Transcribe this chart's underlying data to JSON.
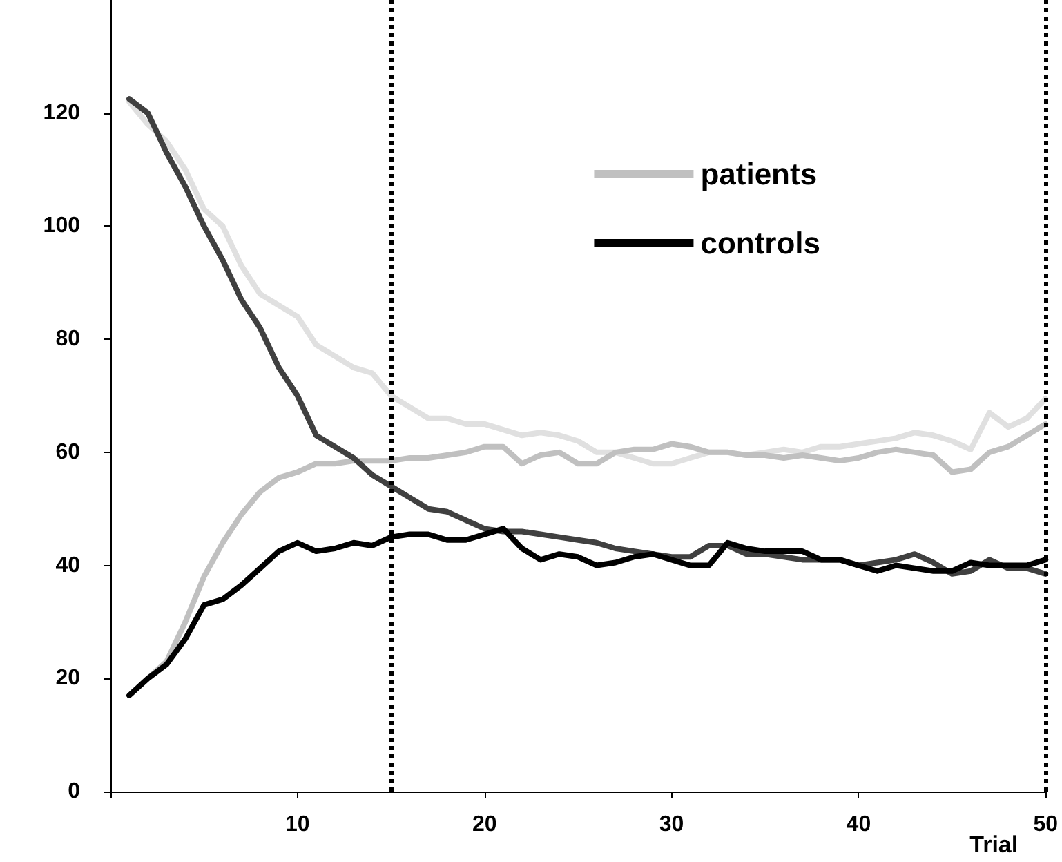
{
  "chart_data": {
    "type": "line",
    "xlabel": "Trial",
    "x": [
      1,
      2,
      3,
      4,
      5,
      6,
      7,
      8,
      9,
      10,
      11,
      12,
      13,
      14,
      15,
      16,
      17,
      18,
      19,
      20,
      21,
      22,
      23,
      24,
      25,
      26,
      27,
      28,
      29,
      30,
      31,
      32,
      33,
      34,
      35,
      36,
      37,
      38,
      39,
      40,
      41,
      42,
      43,
      44,
      45,
      46,
      47,
      48,
      49,
      50
    ],
    "series": [
      {
        "color": "#e0e0e0",
        "values": [
          122,
          118,
          115,
          110,
          103,
          100,
          93,
          88,
          86,
          84,
          79,
          77,
          75,
          74,
          70,
          68,
          66,
          66,
          65,
          65,
          64,
          63,
          63.5,
          63,
          62,
          60,
          60,
          59,
          58,
          58,
          59,
          60,
          60,
          59.5,
          60,
          60.5,
          60,
          61,
          61,
          61.5,
          62,
          62.5,
          63.5,
          63,
          62,
          60.5,
          67,
          64.5,
          66,
          69.5
        ]
      },
      {
        "name": "patients",
        "color": "#c0c0c0",
        "values": [
          17,
          20,
          23,
          30,
          38,
          44,
          49,
          53,
          55.5,
          56.5,
          58,
          58,
          58.5,
          58.5,
          58.5,
          59,
          59,
          59.5,
          60,
          61,
          61,
          58,
          59.5,
          60,
          58,
          58,
          60,
          60.5,
          60.5,
          61.5,
          61,
          60,
          60,
          59.5,
          59.5,
          59,
          59.5,
          59,
          58.5,
          59,
          60,
          60.5,
          60,
          59.5,
          56.5,
          57,
          60,
          61,
          63,
          65
        ]
      },
      {
        "color": "#404040",
        "values": [
          122.5,
          120,
          113,
          107,
          100,
          94,
          87,
          82,
          75,
          70,
          63,
          61,
          59,
          56,
          54,
          52,
          50,
          49.5,
          48,
          46.5,
          46,
          46,
          45.5,
          45,
          44.5,
          44,
          43,
          42.5,
          42,
          41.5,
          41.5,
          43.5,
          43.5,
          42,
          42,
          41.5,
          41,
          41,
          41,
          40,
          40.5,
          41,
          42,
          40.5,
          38.5,
          39,
          41,
          39.5,
          39.5,
          38.5
        ]
      },
      {
        "name": "controls",
        "color": "#000000",
        "values": [
          17,
          20,
          22.5,
          27,
          33,
          34,
          36.5,
          39.5,
          42.5,
          44,
          42.5,
          43,
          44,
          43.5,
          45,
          45.5,
          45.5,
          44.5,
          44.5,
          45.5,
          46.5,
          43,
          41,
          42,
          41.5,
          40,
          40.5,
          41.5,
          42,
          41,
          40,
          40,
          44,
          43,
          42.5,
          42.5,
          42.5,
          41,
          41,
          40,
          39,
          40,
          39.5,
          39,
          39,
          40.5,
          40,
          40,
          40,
          41
        ]
      }
    ],
    "xlim": [
      0,
      50
    ],
    "xticks": [
      {
        "value": 0,
        "label": null
      },
      10,
      20,
      30,
      40,
      50
    ],
    "ylim": [
      0,
      140
    ],
    "yticks": [
      0,
      20,
      40,
      60,
      80,
      100,
      120
    ],
    "ref_lines": [
      {
        "axis": "x",
        "value": 15,
        "color": "#000000",
        "line_style": "dotted"
      },
      {
        "axis": "x",
        "value": 50,
        "color": "#000000",
        "line_style": "dotted"
      }
    ],
    "grid": false,
    "legend": "top right",
    "marker": "none",
    "line_style": "solid"
  }
}
